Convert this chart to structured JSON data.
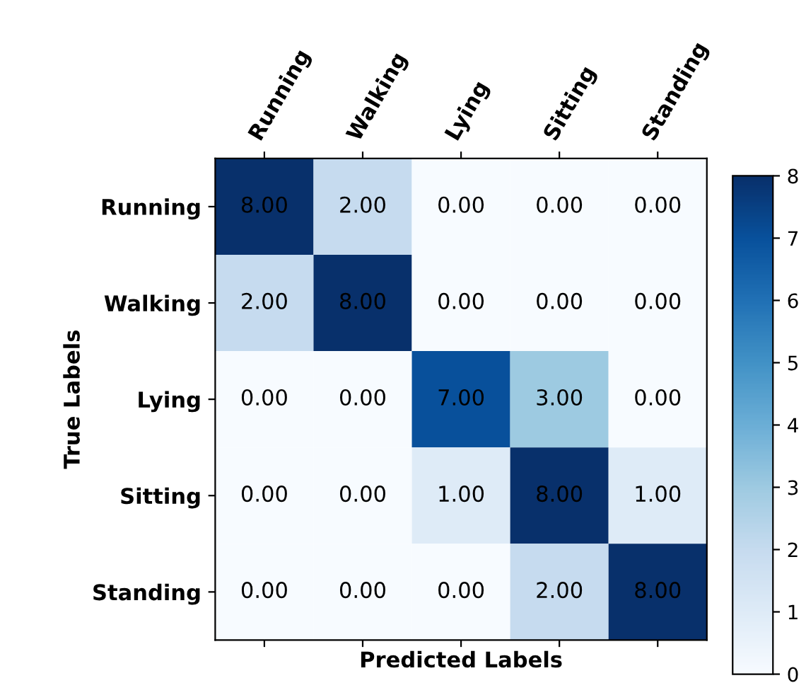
{
  "chart_data": {
    "type": "heatmap",
    "xlabel": "Predicted Labels",
    "ylabel": "True Labels",
    "categories": [
      "Running",
      "Walking",
      "Lying",
      "Sitting",
      "Standing"
    ],
    "y_categories": [
      "Running",
      "Walking",
      "Lying",
      "Sitting",
      "Standing"
    ],
    "cells": [
      [
        8,
        2,
        0,
        0,
        0
      ],
      [
        2,
        8,
        0,
        0,
        0
      ],
      [
        0,
        0,
        7,
        3,
        0
      ],
      [
        0,
        0,
        1,
        8,
        1
      ],
      [
        0,
        0,
        0,
        2,
        8
      ]
    ],
    "cell_labels": [
      [
        "8.00",
        "2.00",
        "0.00",
        "0.00",
        "0.00"
      ],
      [
        "2.00",
        "8.00",
        "0.00",
        "0.00",
        "0.00"
      ],
      [
        "0.00",
        "0.00",
        "7.00",
        "3.00",
        "0.00"
      ],
      [
        "0.00",
        "0.00",
        "1.00",
        "8.00",
        "1.00"
      ],
      [
        "0.00",
        "0.00",
        "0.00",
        "2.00",
        "8.00"
      ]
    ],
    "clim": [
      0,
      8
    ],
    "cticks": [
      0,
      1,
      2,
      3,
      4,
      5,
      6,
      7,
      8
    ]
  }
}
